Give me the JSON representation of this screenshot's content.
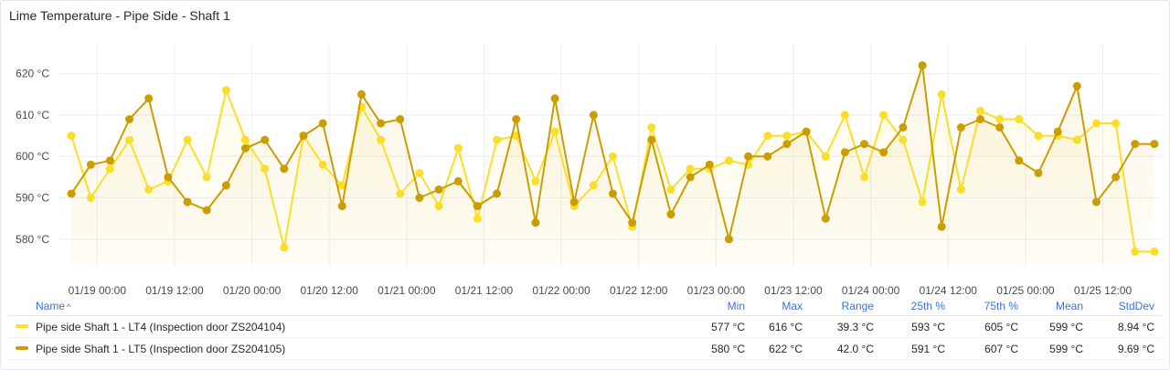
{
  "panel": {
    "title": "Lime Temperature - Pipe Side - Shaft 1"
  },
  "chart_data": {
    "type": "line",
    "title": "Lime Temperature - Pipe Side - Shaft 1",
    "y_unit": "°C",
    "ylim": [
      574,
      625
    ],
    "y_ticks": [
      580,
      590,
      600,
      610,
      620
    ],
    "y_tick_labels": [
      "580 °C",
      "590 °C",
      "600 °C",
      "610 °C",
      "620 °C"
    ],
    "x_range": [
      "2024-01-18T18:00",
      "2024-01-25T21:00"
    ],
    "x_ticks": [
      "2024-01-19T00:00",
      "2024-01-19T12:00",
      "2024-01-20T00:00",
      "2024-01-20T12:00",
      "2024-01-21T00:00",
      "2024-01-21T12:00",
      "2024-01-22T00:00",
      "2024-01-22T12:00",
      "2024-01-23T00:00",
      "2024-01-23T12:00",
      "2024-01-24T00:00",
      "2024-01-24T12:00",
      "2024-01-25T00:00",
      "2024-01-25T12:00"
    ],
    "x_tick_labels": [
      "01/19 00:00",
      "01/19 12:00",
      "01/20 00:00",
      "01/20 12:00",
      "01/21 00:00",
      "01/21 12:00",
      "01/22 00:00",
      "01/22 12:00",
      "01/23 00:00",
      "01/23 12:00",
      "01/24 00:00",
      "01/24 12:00",
      "01/25 00:00",
      "01/25 12:00"
    ],
    "grid": true,
    "x": [
      "2024-01-18T20:00",
      "2024-01-18T23:00",
      "2024-01-19T02:00",
      "2024-01-19T05:00",
      "2024-01-19T08:00",
      "2024-01-19T11:00",
      "2024-01-19T14:00",
      "2024-01-19T17:00",
      "2024-01-19T20:00",
      "2024-01-19T23:00",
      "2024-01-20T02:00",
      "2024-01-20T05:00",
      "2024-01-20T08:00",
      "2024-01-20T11:00",
      "2024-01-20T14:00",
      "2024-01-20T17:00",
      "2024-01-20T20:00",
      "2024-01-20T23:00",
      "2024-01-21T02:00",
      "2024-01-21T05:00",
      "2024-01-21T08:00",
      "2024-01-21T11:00",
      "2024-01-21T14:00",
      "2024-01-21T17:00",
      "2024-01-21T20:00",
      "2024-01-21T23:00",
      "2024-01-22T02:00",
      "2024-01-22T05:00",
      "2024-01-22T08:00",
      "2024-01-22T11:00",
      "2024-01-22T14:00",
      "2024-01-22T17:00",
      "2024-01-22T20:00",
      "2024-01-22T23:00",
      "2024-01-23T02:00",
      "2024-01-23T05:00",
      "2024-01-23T08:00",
      "2024-01-23T11:00",
      "2024-01-23T14:00",
      "2024-01-23T17:00",
      "2024-01-23T20:00",
      "2024-01-23T23:00",
      "2024-01-24T02:00",
      "2024-01-24T05:00",
      "2024-01-24T08:00",
      "2024-01-24T11:00",
      "2024-01-24T14:00",
      "2024-01-24T17:00",
      "2024-01-24T20:00",
      "2024-01-24T23:00",
      "2024-01-25T02:00",
      "2024-01-25T05:00",
      "2024-01-25T08:00",
      "2024-01-25T11:00",
      "2024-01-25T14:00",
      "2024-01-25T17:00",
      "2024-01-25T20:00"
    ],
    "series": [
      {
        "name": "Pipe side Shaft 1 - LT4 (Inspection door ZS204104)",
        "color": "#fade2a",
        "values": [
          605,
          590,
          597,
          604,
          592,
          594,
          604,
          595,
          616,
          604,
          597,
          578,
          605,
          598,
          593,
          612,
          604,
          591,
          596,
          588,
          602,
          585,
          604,
          605,
          594,
          606,
          588,
          593,
          600,
          583,
          607,
          592,
          597,
          597,
          599,
          598,
          605,
          605,
          606,
          600,
          610,
          595,
          610,
          604,
          589,
          615,
          592,
          611,
          609,
          609,
          605,
          605,
          604,
          608,
          608,
          577,
          577
        ]
      },
      {
        "name": "Pipe side Shaft 1 - LT5 (Inspection door ZS204105)",
        "color": "#cc9d00",
        "values": [
          591,
          598,
          599,
          609,
          614,
          595,
          589,
          587,
          593,
          602,
          604,
          597,
          605,
          608,
          588,
          615,
          608,
          609,
          590,
          592,
          594,
          588,
          591,
          609,
          584,
          614,
          589,
          610,
          591,
          584,
          604,
          586,
          595,
          598,
          580,
          600,
          600,
          603,
          606,
          585,
          601,
          603,
          601,
          607,
          622,
          583,
          607,
          609,
          607,
          599,
          596,
          606,
          617,
          589,
          595,
          603,
          603
        ]
      }
    ]
  },
  "legend": {
    "headers": {
      "name": "Name",
      "min": "Min",
      "max": "Max",
      "range": "Range",
      "p25": "25th %",
      "p75": "75th %",
      "mean": "Mean",
      "stddev": "StdDev"
    },
    "sort_indicator": "^",
    "rows": [
      {
        "name": "Pipe side Shaft 1 - LT4 (Inspection door ZS204104)",
        "color": "#fade2a",
        "min": "577 °C",
        "max": "616 °C",
        "range": "39.3 °C",
        "p25": "593 °C",
        "p75": "605 °C",
        "mean": "599 °C",
        "stddev": "8.94 °C"
      },
      {
        "name": "Pipe side Shaft 1 - LT5 (Inspection door ZS204105)",
        "color": "#cc9d00",
        "min": "580 °C",
        "max": "622 °C",
        "range": "42.0 °C",
        "p25": "591 °C",
        "p75": "607 °C",
        "mean": "599 °C",
        "stddev": "9.69 °C"
      }
    ]
  }
}
